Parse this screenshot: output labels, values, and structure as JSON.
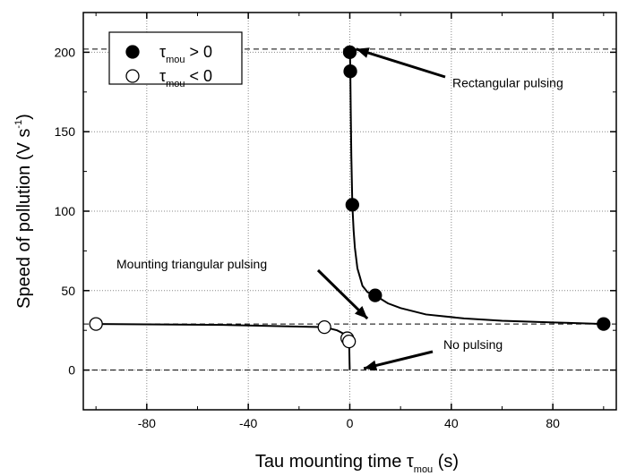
{
  "chart_data": {
    "type": "scatter",
    "xlim": [
      -105,
      105
    ],
    "ylim": [
      -25,
      225
    ],
    "x_ticks": [
      -80,
      -40,
      0,
      40,
      80
    ],
    "y_ticks": [
      0,
      50,
      100,
      150,
      200
    ],
    "xlabel": {
      "main": "Tau mounting time τ",
      "sub": "mou",
      "unit": " (s)"
    },
    "ylabel": {
      "main": "Speed of pollution (V s",
      "sup": "-1",
      "close": ")"
    },
    "grid": true,
    "legend_position": "top-left",
    "series": [
      {
        "name": {
          "main": "τ",
          "sub": "mou",
          "rest": " > 0"
        },
        "marker": "filled-circle",
        "points": [
          [
            0,
            200
          ],
          [
            0.2,
            188
          ],
          [
            1,
            104
          ],
          [
            10,
            47
          ],
          [
            100,
            29
          ]
        ]
      },
      {
        "name": {
          "main": "τ",
          "sub": "mou",
          "rest": " < 0"
        },
        "marker": "open-circle",
        "points": [
          [
            -100,
            29
          ],
          [
            -10,
            27
          ],
          [
            -1,
            20
          ],
          [
            -0.3,
            18
          ]
        ]
      }
    ],
    "curve_positive": [
      [
        0.02,
        200
      ],
      [
        0.05,
        199
      ],
      [
        0.1,
        197
      ],
      [
        0.2,
        188
      ],
      [
        0.4,
        160
      ],
      [
        0.6,
        135
      ],
      [
        1,
        104
      ],
      [
        1.5,
        88
      ],
      [
        2,
        77
      ],
      [
        3,
        64
      ],
      [
        5,
        53
      ],
      [
        7,
        49
      ],
      [
        10,
        47
      ],
      [
        15,
        42
      ],
      [
        20,
        39
      ],
      [
        30,
        35
      ],
      [
        45,
        32.5
      ],
      [
        60,
        31
      ],
      [
        80,
        30
      ],
      [
        100,
        29
      ]
    ],
    "curve_negative": [
      [
        -100,
        29
      ],
      [
        -50,
        28.4
      ],
      [
        -10,
        27
      ],
      [
        -5,
        25
      ],
      [
        -2,
        22.5
      ],
      [
        -1,
        20
      ],
      [
        -0.5,
        18
      ],
      [
        -0.3,
        17
      ],
      [
        -0.2,
        14
      ],
      [
        -0.1,
        5
      ],
      [
        -0.02,
        0
      ]
    ],
    "reference_lines": [
      {
        "y": 202,
        "style": "dashed"
      },
      {
        "y": 29,
        "style": "dashed"
      },
      {
        "y": 0,
        "style": "dashed"
      }
    ],
    "annotations": [
      {
        "text": "Rectangular pulsing",
        "arrow_to": [
          2.5,
          202
        ],
        "label_at": [
          50,
          160
        ]
      },
      {
        "text": "Mounting triangular pulsing",
        "arrow_to": [
          2,
          29
        ],
        "label_at": [
          -68,
          65
        ]
      },
      {
        "text": "No pulsing",
        "arrow_to": [
          2,
          1
        ],
        "label_at": [
          32,
          11
        ]
      }
    ]
  },
  "colors": {
    "axis": "#000000",
    "grid": "#888888",
    "marker": "#000000",
    "background": "#ffffff"
  }
}
